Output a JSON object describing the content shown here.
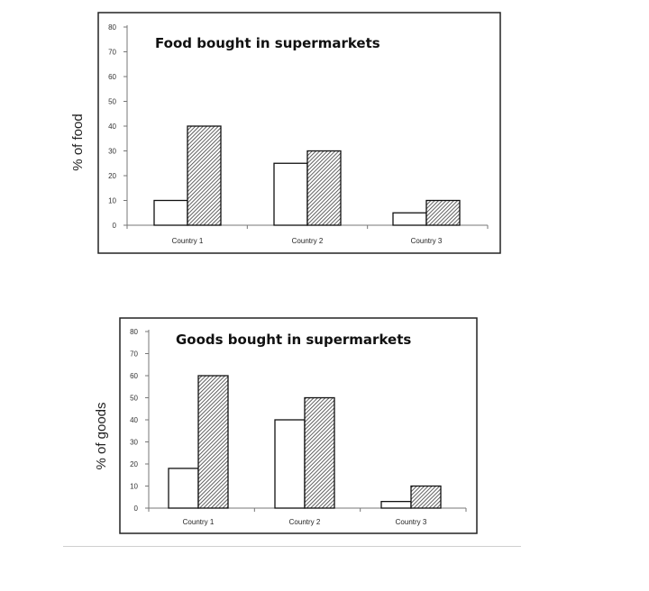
{
  "chart_data": [
    {
      "type": "bar",
      "title": "Food bought in supermarkets",
      "ylabel": "% of food",
      "xlabel": "",
      "categories": [
        "Country 1",
        "Country 2",
        "Country 3"
      ],
      "series": [
        {
          "values": [
            10,
            25,
            5
          ],
          "color": "#ffffff",
          "pattern": "none"
        },
        {
          "values": [
            40,
            30,
            10
          ],
          "color": "#555555",
          "pattern": "diagonal-hatch"
        }
      ],
      "ylim": [
        0,
        80
      ],
      "yticks": [
        0,
        10,
        20,
        30,
        40,
        50,
        60,
        70,
        80
      ],
      "grid": false,
      "legend": "none"
    },
    {
      "type": "bar",
      "title": "Goods bought in supermarkets",
      "ylabel": "% of goods",
      "xlabel": "",
      "categories": [
        "Country 1",
        "Country 2",
        "Country 3"
      ],
      "series": [
        {
          "values": [
            18,
            40,
            3
          ],
          "color": "#ffffff",
          "pattern": "none"
        },
        {
          "values": [
            60,
            50,
            10
          ],
          "color": "#555555",
          "pattern": "diagonal-hatch"
        }
      ],
      "ylim": [
        0,
        80
      ],
      "yticks": [
        0,
        10,
        20,
        30,
        40,
        50,
        60,
        70,
        80
      ],
      "grid": false,
      "legend": "none"
    }
  ]
}
